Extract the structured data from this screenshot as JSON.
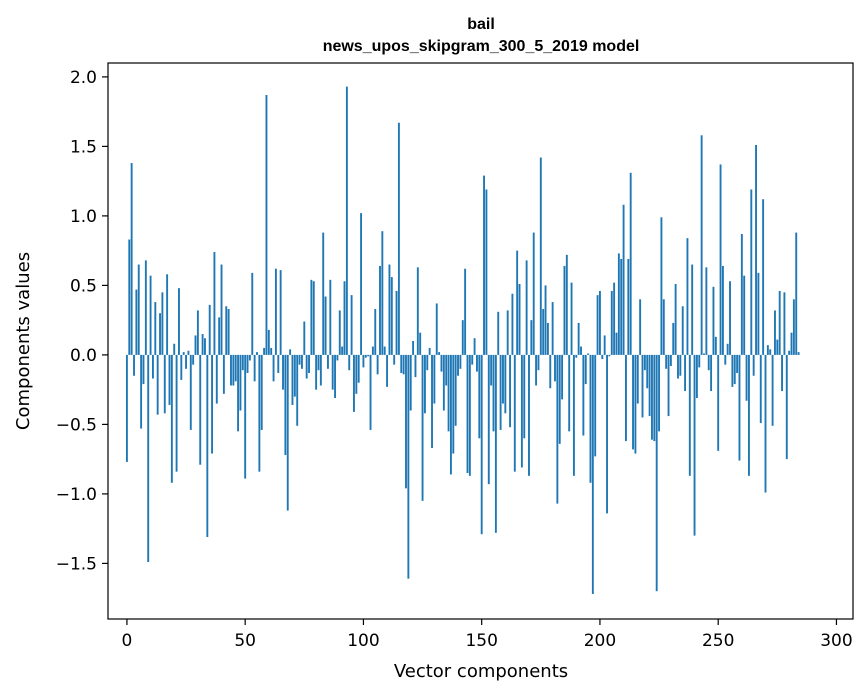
{
  "chart_data": {
    "type": "bar",
    "title": "bail",
    "subtitle": "news_upos_skipgram_300_5_2019 model",
    "xlabel": "Vector components",
    "ylabel": "Components values",
    "xlim": [
      -8,
      307
    ],
    "ylim": [
      -1.9,
      2.1
    ],
    "xticks": [
      0,
      50,
      100,
      150,
      200,
      250,
      300
    ],
    "xtick_labels": [
      "0",
      "50",
      "100",
      "150",
      "200",
      "250",
      "300"
    ],
    "yticks": [
      -1.5,
      -1.0,
      -0.5,
      0.0,
      0.5,
      1.0,
      1.5,
      2.0
    ],
    "ytick_labels": [
      "−1.5",
      "−1.0",
      "−0.5",
      "0.0",
      "0.5",
      "1.0",
      "1.5",
      "2.0"
    ],
    "bar_color": "#1f77b4",
    "grid": false,
    "values": [
      -0.77,
      0.83,
      1.38,
      -0.15,
      0.47,
      0.65,
      -0.53,
      -0.21,
      0.68,
      -1.49,
      0.57,
      -0.17,
      0.38,
      -0.43,
      0.3,
      0.45,
      -0.42,
      0.58,
      -0.36,
      -0.92,
      0.08,
      -0.84,
      0.48,
      -0.18,
      0.02,
      -0.1,
      0.03,
      -0.54,
      -0.07,
      0.14,
      0.32,
      -0.79,
      0.15,
      0.12,
      -1.31,
      0.36,
      -0.71,
      0.74,
      -0.35,
      0.27,
      0.65,
      -0.28,
      0.35,
      0.33,
      -0.22,
      -0.22,
      -0.19,
      -0.55,
      -0.4,
      -0.11,
      -0.89,
      -0.13,
      -0.04,
      0.59,
      -0.19,
      0.02,
      -0.84,
      -0.54,
      0.05,
      1.87,
      0.18,
      0.05,
      -0.19,
      0.62,
      -0.13,
      0.61,
      -0.25,
      -0.72,
      -1.12,
      0.04,
      -0.36,
      -0.3,
      -0.51,
      -0.07,
      -0.1,
      0.24,
      -0.17,
      -0.13,
      0.54,
      0.53,
      -0.25,
      -0.11,
      -0.22,
      0.88,
      0.42,
      -0.1,
      0.54,
      -0.25,
      -0.31,
      -0.04,
      0.32,
      0.06,
      0.53,
      1.93,
      -0.11,
      0.43,
      -0.41,
      -0.28,
      -0.2,
      1.02,
      -0.09,
      -0.02,
      -0.01,
      -0.54,
      0.06,
      0.33,
      -0.14,
      0.64,
      0.89,
      0.06,
      -0.23,
      0.65,
      0.56,
      -0.07,
      0.46,
      1.67,
      -0.13,
      -0.14,
      -0.96,
      -1.61,
      -0.4,
      0.1,
      -0.16,
      0.63,
      0.16,
      -1.05,
      -0.42,
      -0.11,
      0.05,
      -0.67,
      -0.35,
      0.37,
      0.02,
      -0.12,
      -0.4,
      -0.22,
      -0.55,
      -0.86,
      -0.71,
      -0.51,
      -0.15,
      -0.1,
      0.25,
      0.62,
      -0.85,
      -0.87,
      -0.07,
      0.12,
      -0.12,
      -0.6,
      -1.29,
      1.29,
      1.19,
      -0.93,
      -0.22,
      -0.55,
      -1.28,
      0.31,
      -0.54,
      -0.35,
      -0.42,
      0.32,
      -0.52,
      0.44,
      -0.84,
      0.75,
      0.51,
      -0.81,
      -0.6,
      0.68,
      -0.87,
      0.25,
      0.88,
      -0.22,
      -0.11,
      1.42,
      0.33,
      0.5,
      0.23,
      -0.24,
      0.38,
      -0.19,
      -1.07,
      -0.64,
      -0.32,
      0.64,
      0.72,
      -0.55,
      0.52,
      -0.87,
      -0.02,
      0.23,
      0.06,
      -0.58,
      -0.21,
      0.01,
      -0.92,
      -1.72,
      -0.73,
      0.43,
      0.46,
      -0.03,
      0.14,
      -1.14,
      -0.01,
      0.46,
      0.52,
      0.16,
      0.73,
      0.69,
      1.08,
      -0.62,
      0.69,
      1.31,
      -0.68,
      -0.71,
      -0.35,
      0.4,
      -0.45,
      -0.11,
      -0.24,
      -0.44,
      -0.61,
      -0.62,
      -1.7,
      -0.55,
      0.99,
      0.4,
      -0.1,
      -0.44,
      -0.08,
      0.23,
      0.51,
      -0.17,
      -0.15,
      0.35,
      -0.26,
      0.84,
      -0.87,
      0.65,
      -1.3,
      -0.31,
      -0.09,
      1.58,
      0.01,
      0.63,
      -0.11,
      -0.26,
      0.49,
      0.13,
      -0.69,
      1.37,
      0.64,
      -0.07,
      0.08,
      0.53,
      -0.23,
      -0.21,
      -0.13,
      -0.76,
      0.87,
      0.57,
      -0.33,
      -0.87,
      1.19,
      -0.15,
      1.51,
      0.59,
      -0.49,
      1.12,
      -0.99,
      0.07,
      0.04,
      -0.51,
      0.32,
      0.11,
      0.46,
      -0.26,
      0.45,
      -0.75,
      0.03,
      0.16,
      0.4,
      0.88,
      0.02
    ]
  }
}
